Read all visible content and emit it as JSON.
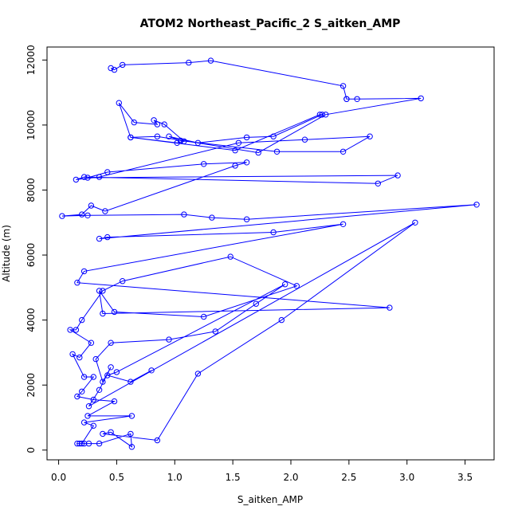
{
  "chart_data": {
    "type": "line",
    "title": "ATOM2 Northeast_Pacific_2 S_aitken_AMP",
    "xlabel": "S_aitken_AMP",
    "ylabel": "Altitude (m)",
    "xlim": [
      -0.1,
      3.75
    ],
    "ylim": [
      -300,
      12400
    ],
    "x_ticks": [
      "0.0",
      "0.5",
      "1.0",
      "1.5",
      "2.0",
      "2.5",
      "3.0",
      "3.5"
    ],
    "x_tick_values": [
      0,
      0.5,
      1.0,
      1.5,
      2.0,
      2.5,
      3.0,
      3.5
    ],
    "y_ticks": [
      "0",
      "2000",
      "4000",
      "6000",
      "8000",
      "10000",
      "12000"
    ],
    "y_tick_values": [
      0,
      2000,
      4000,
      6000,
      8000,
      10000,
      12000
    ],
    "line_style": "lines with open circle markers",
    "color": "#0000ff",
    "grid": false,
    "legend": "none",
    "series": [
      {
        "x": [
          0.45,
          0.48,
          0.55,
          1.12,
          1.31,
          2.45,
          2.48,
          2.48,
          2.57,
          3.12,
          2.3,
          1.72,
          0.85,
          0.62,
          0.52,
          0.65,
          0.85,
          0.82,
          0.91,
          1.08,
          1.02,
          0.62,
          1.52,
          2.25,
          2.27,
          1.85,
          1.62,
          1.2,
          0.95,
          1.05,
          1.88,
          2.45,
          2.68,
          2.12,
          1.55,
          0.35,
          0.15,
          0.22,
          2.75,
          2.92,
          0.25,
          0.42,
          1.25,
          1.62,
          1.52,
          0.4,
          0.28,
          0.2,
          0.03,
          0.25,
          1.08,
          1.32,
          1.62,
          3.6,
          0.35,
          0.42,
          1.85,
          2.45,
          0.22,
          0.16,
          2.85,
          0.38,
          0.35,
          0.48,
          1.25,
          2.05,
          1.48,
          0.55,
          0.38,
          0.2,
          0.15,
          0.1,
          0.28,
          0.18,
          0.12,
          0.22,
          0.3,
          0.2,
          0.16,
          0.3,
          0.48,
          0.25,
          0.63,
          0.22,
          0.3,
          0.2,
          0.26,
          0.22,
          0.18,
          0.16,
          0.35,
          0.62,
          0.63,
          0.45,
          0.38,
          0.85,
          1.2,
          1.92,
          3.07,
          0.26,
          0.35,
          0.45,
          0.38,
          0.32,
          0.45,
          0.95,
          1.35,
          1.7,
          1.95,
          0.5,
          0.42,
          0.62,
          0.8
        ],
        "y": [
          11750,
          11700,
          11850,
          11920,
          11980,
          11200,
          10800,
          10800,
          10800,
          10820,
          10320,
          9150,
          9650,
          9620,
          10680,
          10080,
          10020,
          10150,
          10020,
          9500,
          9450,
          9620,
          9220,
          10320,
          10320,
          9650,
          9620,
          9450,
          9650,
          9520,
          9180,
          9180,
          9650,
          9550,
          9450,
          8400,
          8320,
          8400,
          8200,
          8450,
          8380,
          8550,
          8800,
          8850,
          8750,
          7350,
          7520,
          7250,
          7200,
          7220,
          7250,
          7150,
          7100,
          7550,
          6500,
          6550,
          6700,
          6950,
          5500,
          5150,
          4380,
          4200,
          4900,
          4250,
          4100,
          5050,
          5950,
          5200,
          4900,
          4000,
          3700,
          3700,
          3300,
          2850,
          2950,
          2250,
          2250,
          1800,
          1650,
          1550,
          1500,
          1050,
          1050,
          850,
          750,
          200,
          200,
          200,
          200,
          200,
          200,
          500,
          100,
          550,
          500,
          300,
          2350,
          4000,
          7000,
          1350,
          1850,
          2550,
          2100,
          2800,
          3300,
          3400,
          3650,
          4500,
          5100,
          2400,
          2300,
          2100,
          2450
        ]
      }
    ]
  }
}
